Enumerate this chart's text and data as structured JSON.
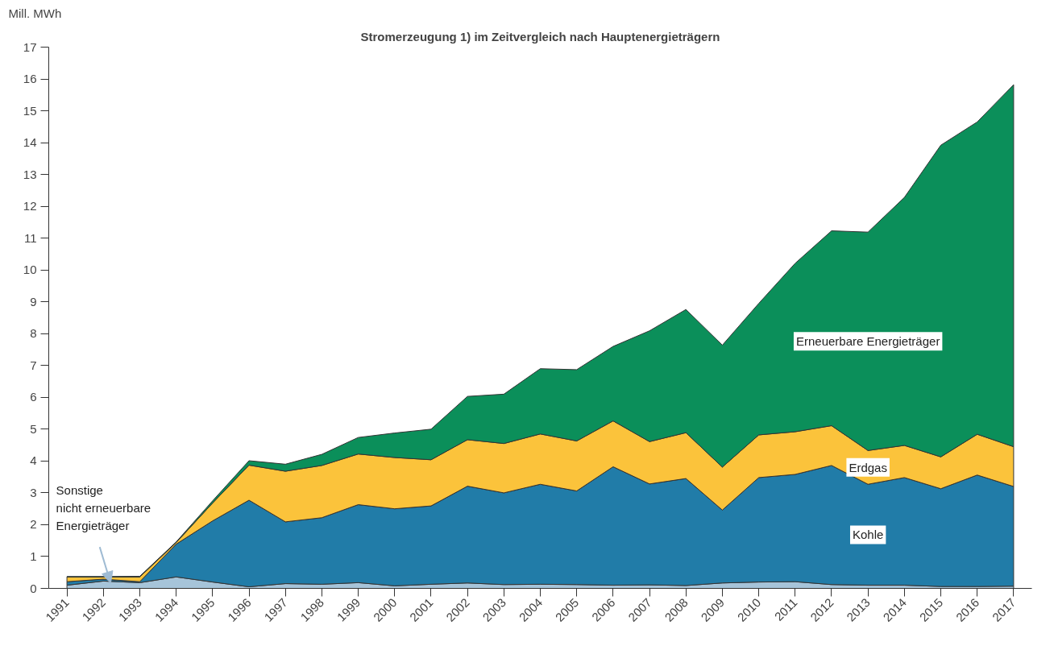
{
  "chart_data": {
    "type": "area",
    "stacked": true,
    "title": "Stromerzeugung 1) im Zeitvergleich nach Hauptenergieträgern",
    "ylabel": "Mill. MWh",
    "categories": [
      "1991",
      "1992",
      "1993",
      "1994",
      "1995",
      "1996",
      "1997",
      "1998",
      "1999",
      "2000",
      "2001",
      "2002",
      "2003",
      "2004",
      "2005",
      "2006",
      "2007",
      "2008",
      "2009",
      "2010",
      "2011",
      "2012",
      "2013",
      "2014",
      "2015",
      "2016",
      "2017"
    ],
    "ylim": [
      0,
      17
    ],
    "yticks": [
      0,
      1,
      2,
      3,
      4,
      5,
      6,
      7,
      8,
      9,
      10,
      11,
      12,
      13,
      14,
      15,
      16,
      17
    ],
    "grid": false,
    "series": [
      {
        "name": "Sonstige\nnicht erneuerbare\nEnergieträger",
        "color": "#a6c4d9",
        "values": [
          0.1,
          0.23,
          0.18,
          0.36,
          0.2,
          0.05,
          0.15,
          0.13,
          0.18,
          0.08,
          0.13,
          0.17,
          0.12,
          0.13,
          0.12,
          0.1,
          0.11,
          0.09,
          0.17,
          0.2,
          0.21,
          0.12,
          0.1,
          0.1,
          0.06,
          0.06,
          0.07
        ]
      },
      {
        "name": "Kohle",
        "color": "#217ca8",
        "values": [
          0.11,
          0.06,
          0.03,
          1.03,
          1.92,
          2.72,
          1.94,
          2.09,
          2.45,
          2.42,
          2.46,
          3.04,
          2.88,
          3.14,
          2.94,
          3.72,
          3.17,
          3.36,
          2.29,
          3.28,
          3.37,
          3.74,
          3.17,
          3.38,
          3.07,
          3.5,
          3.13
        ]
      },
      {
        "name": "Erdgas",
        "color": "#fbc33b",
        "values": [
          0.15,
          0.07,
          0.15,
          0.05,
          0.56,
          1.1,
          1.59,
          1.64,
          1.59,
          1.61,
          1.45,
          1.46,
          1.55,
          1.58,
          1.57,
          1.44,
          1.33,
          1.44,
          1.35,
          1.34,
          1.34,
          1.25,
          1.06,
          1.01,
          1.0,
          1.28,
          1.25
        ]
      },
      {
        "name": "Erneuerbare Energieträger",
        "color": "#0b8f5a",
        "values": [
          0.01,
          0.01,
          0.02,
          0.02,
          0.07,
          0.14,
          0.22,
          0.35,
          0.52,
          0.77,
          0.96,
          1.36,
          1.55,
          2.05,
          2.24,
          2.34,
          3.48,
          3.87,
          3.83,
          4.13,
          5.29,
          6.12,
          6.86,
          7.79,
          9.79,
          9.81,
          11.37
        ]
      }
    ]
  }
}
